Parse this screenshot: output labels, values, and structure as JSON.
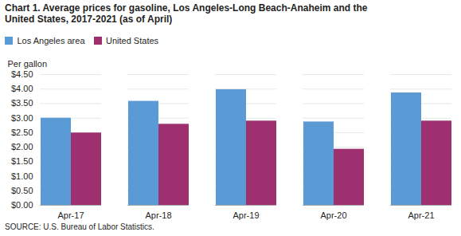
{
  "chart_data": {
    "type": "bar",
    "title": "Chart 1. Average prices for gasoline, Los Angeles-Long Beach-Anaheim and the",
    "subtitle": "United States, 2017-2021  (as of April)",
    "ylabel": "Per gallon",
    "caption": "SOURCE: U.S. Bureau of Labor Statistics.",
    "categories": [
      "Apr-17",
      "Apr-18",
      "Apr-19",
      "Apr-20",
      "Apr-21"
    ],
    "series": [
      {
        "name": "Los Angeles area",
        "color": "#5B9BD5",
        "values": [
          3.0,
          3.58,
          3.98,
          2.87,
          3.87
        ]
      },
      {
        "name": "United States",
        "color": "#9E3070",
        "values": [
          2.49,
          2.79,
          2.9,
          1.93,
          2.9
        ]
      }
    ],
    "ylim": [
      0,
      4.5
    ],
    "yticks": [
      {
        "value": 0.0,
        "label": "$0.00"
      },
      {
        "value": 0.5,
        "label": "$0.50"
      },
      {
        "value": 1.0,
        "label": "$1.00"
      },
      {
        "value": 1.5,
        "label": "$1.50"
      },
      {
        "value": 2.0,
        "label": "$2.00"
      },
      {
        "value": 2.5,
        "label": "$2.50"
      },
      {
        "value": 3.0,
        "label": "$3.00"
      },
      {
        "value": 3.5,
        "label": "$3.50"
      },
      {
        "value": 4.0,
        "label": "$4.00"
      },
      {
        "value": 4.5,
        "label": "$4.50"
      }
    ],
    "grid": true,
    "legend": "top"
  }
}
